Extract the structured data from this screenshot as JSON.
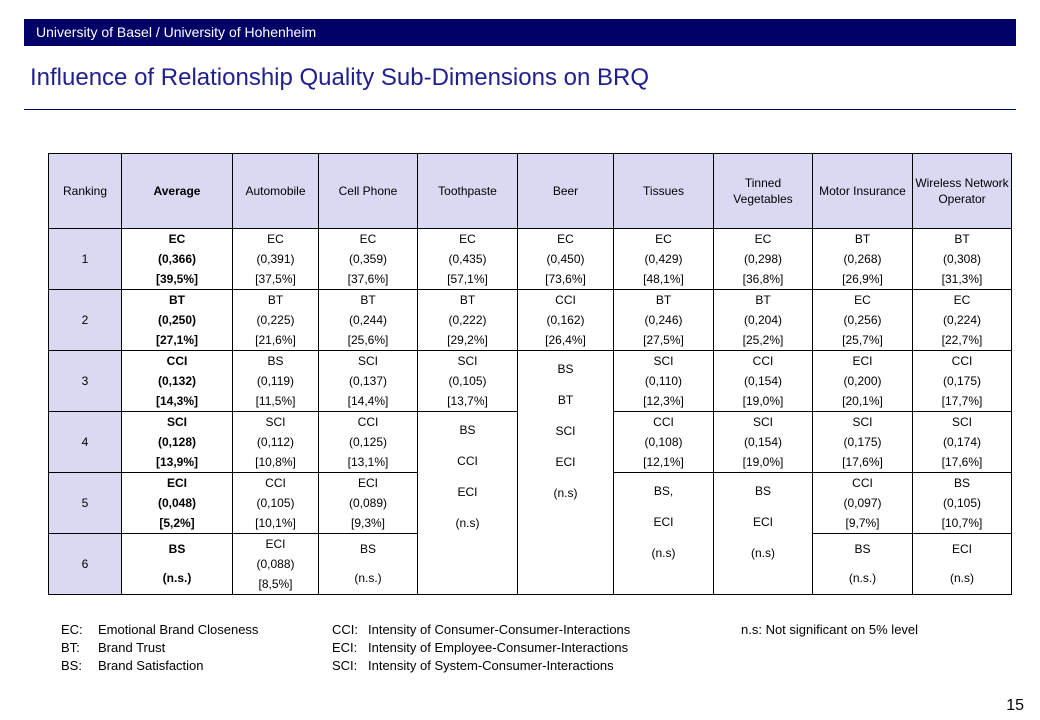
{
  "header": {
    "text": "University of Basel / University of Hohenheim"
  },
  "title": "Influence of Relationship Quality Sub-Dimensions on BRQ",
  "table": {
    "headers": [
      "Ranking",
      "Average",
      "Automobile",
      "Cell Phone",
      "Toothpaste",
      "Beer",
      "Tissues",
      "Tinned Vegetables",
      "Motor Insurance",
      "Wireless Network Operator"
    ],
    "rows": [
      {
        "rank": "1",
        "cells": [
          [
            "EC",
            "(0,366)",
            "[39,5%]"
          ],
          [
            "EC",
            "(0,391)",
            "[37,5%]"
          ],
          [
            "EC",
            "(0,359)",
            "[37,6%]"
          ],
          [
            "EC",
            "(0,435)",
            "[57,1%]"
          ],
          [
            "EC",
            "(0,450)",
            "[73,6%]"
          ],
          [
            "EC",
            "(0,429)",
            "[48,1%]"
          ],
          [
            "EC",
            "(0,298)",
            "[36,8%]"
          ],
          [
            "BT",
            "(0,268)",
            "[26,9%]"
          ],
          [
            "BT",
            "(0,308)",
            "[31,3%]"
          ]
        ]
      },
      {
        "rank": "2",
        "cells": [
          [
            "BT",
            "(0,250)",
            "[27,1%]"
          ],
          [
            "BT",
            "(0,225)",
            "[21,6%]"
          ],
          [
            "BT",
            "(0,244)",
            "[25,6%]"
          ],
          [
            "BT",
            "(0,222)",
            "[29,2%]"
          ],
          [
            "CCI",
            "(0,162)",
            "[26,4%]"
          ],
          [
            "BT",
            "(0,246)",
            "[27,5%]"
          ],
          [
            "BT",
            "(0,204)",
            "[25,2%]"
          ],
          [
            "EC",
            "(0,256)",
            "[25,7%]"
          ],
          [
            "EC",
            "(0,224)",
            "[22,7%]"
          ]
        ]
      },
      {
        "rank": "3",
        "cells": [
          [
            "CCI",
            "(0,132)",
            "[14,3%]"
          ],
          [
            "BS",
            "(0,119)",
            "[11,5%]"
          ],
          [
            "SCI",
            "(0,137)",
            "[14,4%]"
          ],
          [
            "SCI",
            "(0,105)",
            "[13,7%]"
          ],
          [
            "SCI",
            "(0,110)",
            "[12,3%]"
          ],
          [
            "CCI",
            "(0,154)",
            "[19,0%]"
          ],
          [
            "ECI",
            "(0,200)",
            "[20,1%]"
          ],
          [
            "CCI",
            "(0,175)",
            "[17,7%]"
          ]
        ],
        "beer_merged": [
          "BS",
          "BT",
          "SCI",
          "ECI",
          "(n.s)"
        ]
      },
      {
        "rank": "4",
        "cells": [
          [
            "SCI",
            "(0,128)",
            "[13,9%]"
          ],
          [
            "SCI",
            "(0,112)",
            "[10,8%]"
          ],
          [
            "CCI",
            "(0,125)",
            "[13,1%]"
          ],
          [
            "CCI",
            "(0,108)",
            "[12,1%]"
          ],
          [
            "SCI",
            "(0,154)",
            "[19,0%]"
          ],
          [
            "SCI",
            "(0,175)",
            "[17,6%]"
          ],
          [
            "SCI",
            "(0,174)",
            "[17,6%]"
          ]
        ],
        "toothpaste_merged": [
          "BS",
          "CCI",
          "ECI",
          "(n.s)"
        ]
      },
      {
        "rank": "5",
        "cells": [
          [
            "ECI",
            "(0,048)",
            "[5,2%]"
          ],
          [
            "CCI",
            "(0,105)",
            "[10,1%]"
          ],
          [
            "ECI",
            "(0,089)",
            "[9,3%]"
          ],
          [
            "CCI",
            "(0,097)",
            "[9,7%]"
          ],
          [
            "BS",
            "(0,105)",
            "[10,7%]"
          ]
        ],
        "tissues_merged": [
          "BS,",
          "ECI",
          "(n.s)"
        ],
        "tinned_merged": [
          "BS",
          "ECI",
          "(n.s)"
        ]
      },
      {
        "rank": "6",
        "cells": [
          [
            "BS",
            "(n.s.)"
          ],
          [
            "ECI",
            "(0,088)",
            "[8,5%]"
          ],
          [
            "BS",
            "(n.s.)"
          ],
          [
            "BS",
            "(n.s.)"
          ],
          [
            "ECI",
            "(n.s)"
          ]
        ]
      }
    ]
  },
  "legend": {
    "col1": [
      {
        "abbr": "EC:",
        "text": "Emotional Brand Closeness"
      },
      {
        "abbr": "BT:",
        "text": "Brand Trust"
      },
      {
        "abbr": "BS:",
        "text": "Brand Satisfaction"
      }
    ],
    "col2": [
      {
        "abbr": "CCI:",
        "text": "Intensity of Consumer-Consumer-Interactions"
      },
      {
        "abbr": "ECI:",
        "text": "Intensity of Employee-Consumer-Interactions"
      },
      {
        "abbr": "SCI:",
        "text": "Intensity of System-Consumer-Interactions"
      }
    ],
    "col3": "n.s: Not significant on 5% level"
  },
  "page_number": "15"
}
